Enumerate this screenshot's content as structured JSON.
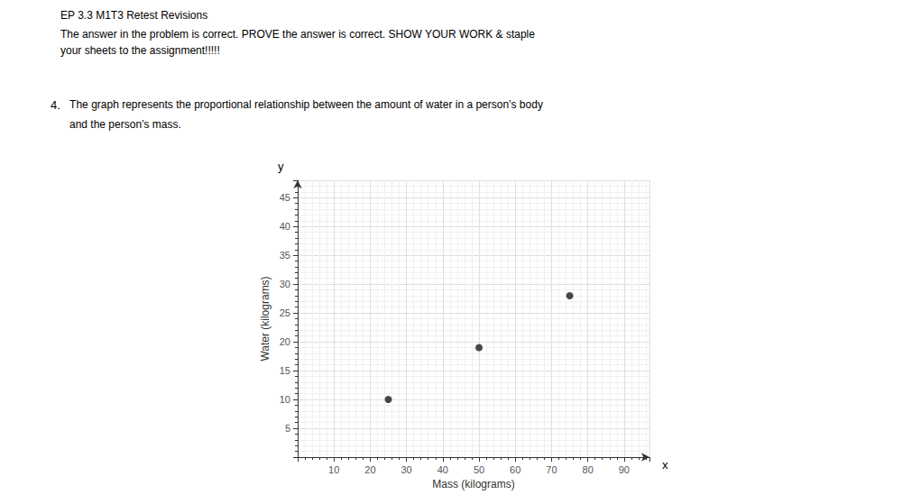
{
  "chart_data": {
    "type": "scatter",
    "title": "EP 3.3 M1T3 Retest Revisions",
    "subtitle": [
      "The answer in the problem is correct. PROVE the answer is correct. SHOW YOUR WORK & staple",
      "your sheets to the assignment!!!!!"
    ],
    "annotations": [
      "4.",
      " The graph represents the proportional relationship between the amount of water in a person’s body",
      "and the person’s mass.",
      "y",
      "x"
    ],
    "x": [
      25,
      50,
      75
    ],
    "values": [
      10,
      19,
      28
    ],
    "color": "#1a1a1a",
    "marker": "circle",
    "xlabel": "Mass (kilograms)",
    "ylabel": "Water (kilograms)",
    "xlim": [
      0,
      97
    ],
    "ylim": [
      0,
      48
    ],
    "xticks": [
      10,
      20,
      30,
      40,
      50,
      60,
      70,
      80,
      90
    ],
    "yticks": [
      5,
      10,
      15,
      20,
      25,
      30,
      35,
      40,
      45
    ],
    "grid": true
  }
}
